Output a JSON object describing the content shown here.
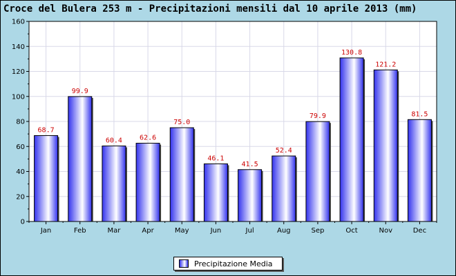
{
  "chart_data": {
    "type": "bar",
    "title": "Croce del Bulera 253 m - Precipitazioni mensili dal 10 aprile 2013 (mm)",
    "categories": [
      "Jan",
      "Feb",
      "Mar",
      "Apr",
      "May",
      "Jun",
      "Jul",
      "Aug",
      "Sep",
      "Oct",
      "Nov",
      "Dec"
    ],
    "series": [
      {
        "name": "Precipitazione Media",
        "values": [
          68.7,
          99.9,
          60.4,
          62.6,
          75.0,
          46.1,
          41.5,
          52.4,
          79.9,
          130.8,
          121.2,
          81.5
        ],
        "labels": [
          "68.7",
          "99.9",
          "60.4",
          "62.6",
          "75.0",
          "46.1",
          "41.5",
          "52.4",
          "79.9",
          "130.8",
          "121.2",
          "81.5"
        ]
      }
    ],
    "ylim": [
      0,
      160
    ],
    "yticks": [
      0,
      20,
      40,
      60,
      80,
      100,
      120,
      140,
      160
    ],
    "grid": true,
    "legend": "bottom-center",
    "colors": {
      "background": "#add8e6",
      "plot_background": "#ffffff",
      "bar": "#3333ee",
      "bar_highlight": "#ffffff",
      "data_label": "#cc0000",
      "grid": "#d8d8e8"
    }
  }
}
